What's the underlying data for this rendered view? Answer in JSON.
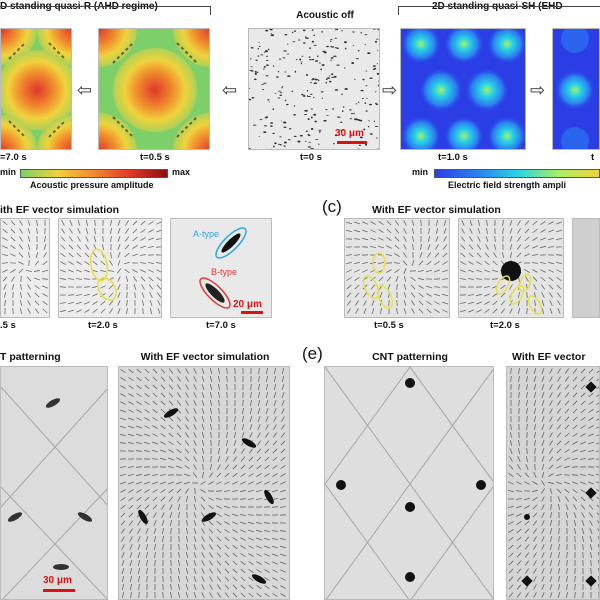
{
  "top": {
    "left_title": "D standing quasi-R (AHD regime)",
    "center_title": "Acoustic off",
    "right_title": "2D standing quasi-SH (EHD",
    "times": {
      "t_left": "=7.0 s",
      "t_mid": "t=0.5 s",
      "t_center": "t=0 s",
      "t_right1": "t=1.0 s",
      "t_right2": "t"
    },
    "colorbar_left": {
      "min": "min",
      "max": "max",
      "label": "Acoustic pressure amplitude"
    },
    "colorbar_right": {
      "min": "min",
      "label": "Electric field strength ampli"
    },
    "scale_label": "30 μm",
    "colors": {
      "red": "#e0362c",
      "yellow": "#f0d23c",
      "green": "#7dcf6a",
      "blue": "#2b3ee6",
      "cyan": "#28d2e6"
    }
  },
  "row2": {
    "left_title": "ith EF vector simulation",
    "letter_c": "(c)",
    "right_title": "With EF vector simulation",
    "times": {
      "b1": ".5 s",
      "b2": "t=2.0 s",
      "b3": "t=7.0 s",
      "c1": "t=0.5 s",
      "c2": "t=2.0 s"
    },
    "a_type": "A-type",
    "b_type": "B-type",
    "scale_label": "20 μm"
  },
  "row3": {
    "left_title": "T patterning",
    "left_sim_title": "With EF vector simulation",
    "letter_e": "(e)",
    "right_title": "CNT patterning",
    "right_sim_title": "With EF vector",
    "scale_label": "30 μm"
  },
  "icons": [
    "arrow-left-icon",
    "arrow-right-icon"
  ]
}
